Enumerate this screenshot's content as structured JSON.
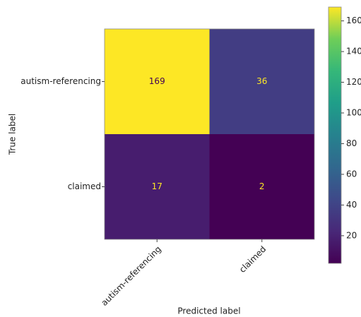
{
  "chart_data": {
    "type": "heatmap",
    "x_label": "Predicted label",
    "y_label": "True label",
    "x_categories": [
      "autism-referencing",
      "claimed"
    ],
    "y_categories": [
      "autism-referencing",
      "claimed"
    ],
    "values": [
      [
        169,
        36
      ],
      [
        17,
        2
      ]
    ],
    "colormap": "viridis",
    "clim": [
      2,
      169
    ],
    "colorbar_ticks": [
      20,
      40,
      60,
      80,
      100,
      120,
      140,
      160
    ]
  }
}
